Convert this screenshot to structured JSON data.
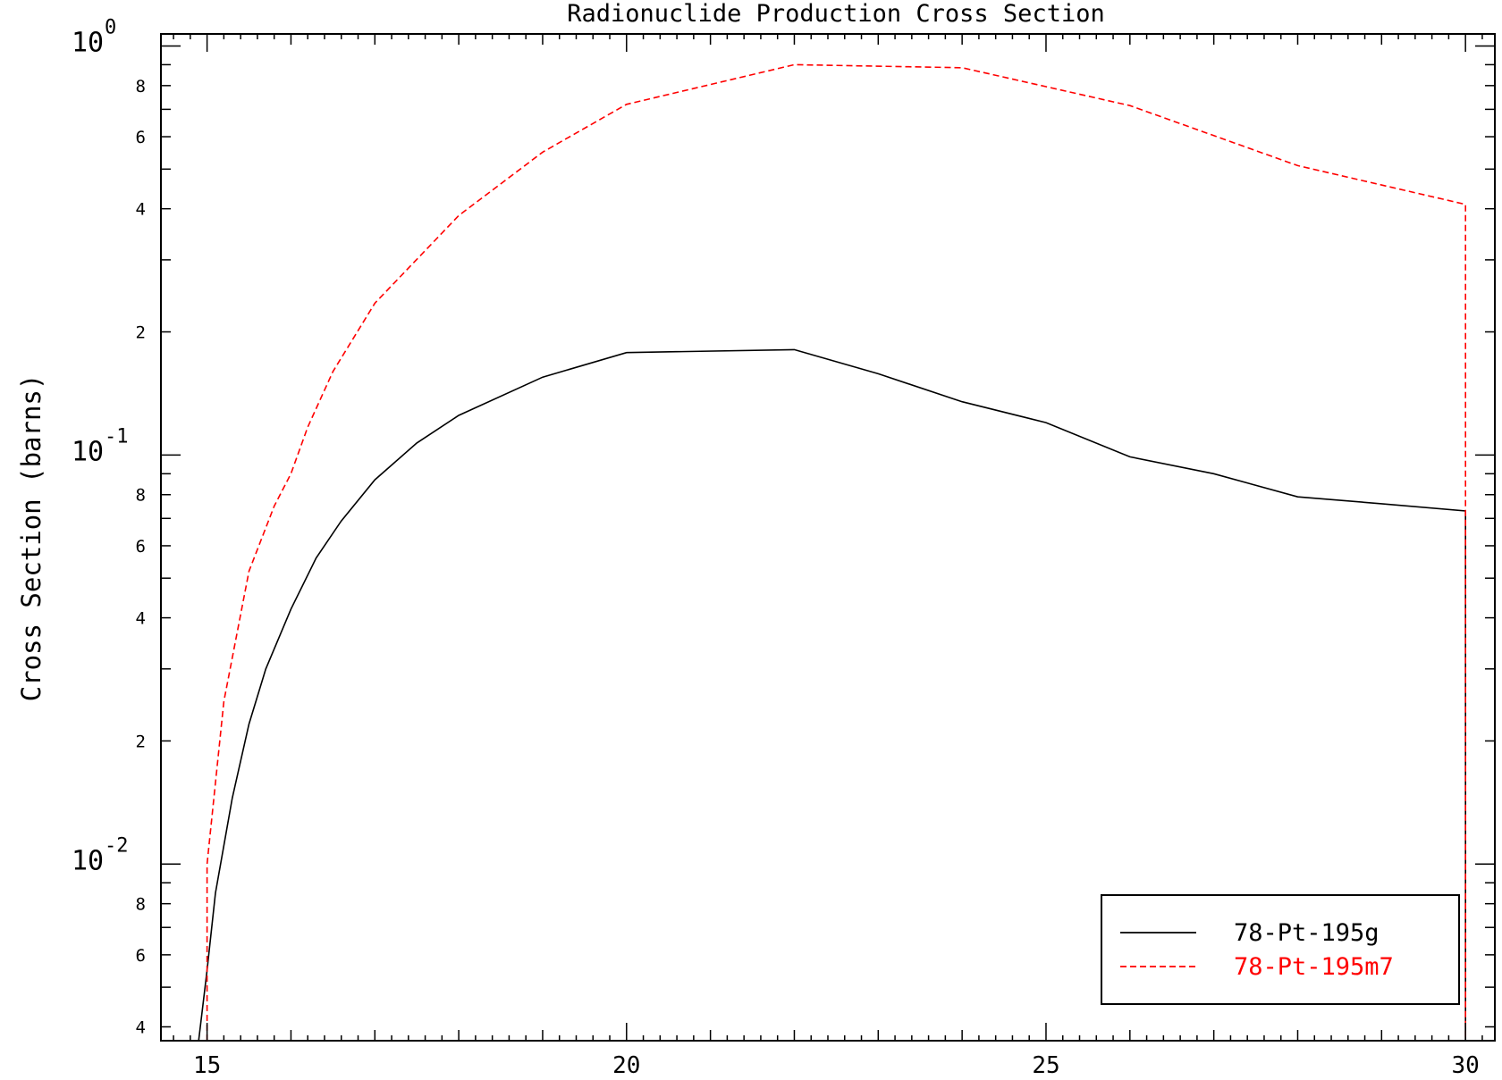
{
  "chart_data": {
    "type": "line",
    "title": "Radionuclide Production Cross Section",
    "xlabel": "",
    "ylabel": "Cross Section (barns)",
    "xlim": [
      14.45,
      30.35
    ],
    "ylim": [
      0.0037,
      1.07
    ],
    "yscale": "log",
    "x_ticks": [
      "15",
      "20",
      "25",
      "30"
    ],
    "y_decade_ticks": [
      {
        "value": 1,
        "base": "10",
        "exp": "0"
      },
      {
        "value": 0.1,
        "base": "10",
        "exp": "-1"
      },
      {
        "value": 0.01,
        "base": "10",
        "exp": "-2"
      }
    ],
    "y_minor_labels": [
      "8",
      "6",
      "4",
      "2"
    ],
    "grid": false,
    "legend_position": "bottom-right",
    "series": [
      {
        "name": "78-Pt-195g",
        "color": "#000000",
        "style": "solid",
        "x": [
          14.9,
          15.0,
          15.1,
          15.3,
          15.5,
          15.7,
          16.0,
          16.3,
          16.6,
          17.0,
          17.5,
          18.0,
          19.0,
          20.0,
          22.0,
          23.0,
          24.0,
          25.0,
          26.0,
          27.0,
          28.0,
          29.0,
          30.0,
          30.0
        ],
        "y": [
          0.0037,
          0.0055,
          0.0085,
          0.0145,
          0.022,
          0.03,
          0.042,
          0.056,
          0.069,
          0.087,
          0.107,
          0.125,
          0.155,
          0.178,
          0.181,
          0.158,
          0.135,
          0.12,
          0.099,
          0.09,
          0.079,
          0.076,
          0.073,
          0.0037
        ],
        "values": [
          0.0037,
          0.0055,
          0.0085,
          0.0145,
          0.022,
          0.03,
          0.042,
          0.056,
          0.069,
          0.087,
          0.107,
          0.125,
          0.155,
          0.178,
          0.181,
          0.158,
          0.135,
          0.12,
          0.099,
          0.09,
          0.079,
          0.076,
          0.073,
          0.0037
        ]
      },
      {
        "name": "78-Pt-195m7",
        "color": "#ff0000",
        "style": "dashed",
        "x": [
          15.0,
          15.0,
          15.2,
          15.5,
          15.8,
          16.0,
          16.2,
          16.5,
          17.0,
          18.0,
          19.0,
          20.0,
          22.0,
          24.0,
          26.0,
          28.0,
          30.0,
          30.0
        ],
        "y": [
          0.0037,
          0.01,
          0.025,
          0.052,
          0.075,
          0.09,
          0.117,
          0.16,
          0.235,
          0.385,
          0.55,
          0.72,
          0.9,
          0.885,
          0.715,
          0.51,
          0.41,
          0.0037
        ],
        "values": [
          0.0037,
          0.01,
          0.025,
          0.052,
          0.075,
          0.09,
          0.117,
          0.16,
          0.235,
          0.385,
          0.55,
          0.72,
          0.9,
          0.885,
          0.715,
          0.51,
          0.41,
          0.0037
        ]
      }
    ]
  }
}
